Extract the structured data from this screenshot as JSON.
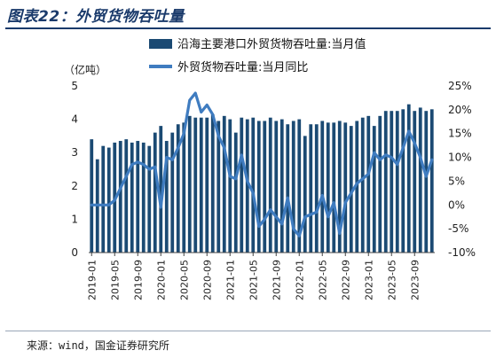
{
  "header": {
    "title": "图表22：外贸货物吞吐量"
  },
  "footer": {
    "source": "来源：wind，国金证券研究所"
  },
  "colors": {
    "bar": "#1b4a73",
    "line": "#3f7cc0",
    "title": "#1a3a6b"
  },
  "chart_data": {
    "type": "bar",
    "left_axis_unit": "（亿吨）",
    "ylim_left": [
      0,
      5
    ],
    "ylim_right": [
      -10,
      25
    ],
    "y_ticks_left": [
      "0",
      "1",
      "2",
      "3",
      "4",
      "5"
    ],
    "y_ticks_right": [
      "-10%",
      "-5%",
      "0%",
      "5%",
      "10%",
      "15%",
      "20%",
      "25%"
    ],
    "x_tick_labels": [
      "2019-01",
      "2019-05",
      "2019-09",
      "2020-01",
      "2020-05",
      "2020-09",
      "2021-01",
      "2021-05",
      "2021-09",
      "2022-01",
      "2022-05",
      "2022-09",
      "2023-01",
      "2023-05",
      "2023-09"
    ],
    "legend": [
      "沿海主要港口外贸货物吞吐量:当月值",
      "外贸货物吞吐量:当月同比"
    ],
    "legend_position": "top",
    "categories": [
      "2019-01",
      "2019-02",
      "2019-03",
      "2019-04",
      "2019-05",
      "2019-06",
      "2019-07",
      "2019-08",
      "2019-09",
      "2019-10",
      "2019-11",
      "2019-12",
      "2020-01",
      "2020-02",
      "2020-03",
      "2020-04",
      "2020-05",
      "2020-06",
      "2020-07",
      "2020-08",
      "2020-09",
      "2020-10",
      "2020-11",
      "2020-12",
      "2021-01",
      "2021-02",
      "2021-03",
      "2021-04",
      "2021-05",
      "2021-06",
      "2021-07",
      "2021-08",
      "2021-09",
      "2021-10",
      "2021-11",
      "2021-12",
      "2022-01",
      "2022-02",
      "2022-03",
      "2022-04",
      "2022-05",
      "2022-06",
      "2022-07",
      "2022-08",
      "2022-09",
      "2022-10",
      "2022-11",
      "2022-12",
      "2023-01",
      "2023-02",
      "2023-03",
      "2023-04",
      "2023-05",
      "2023-06",
      "2023-07",
      "2023-08",
      "2023-09",
      "2023-10",
      "2023-11",
      "2023-12"
    ],
    "series": [
      {
        "name": "沿海主要港口外贸货物吞吐量:当月值",
        "kind": "bar",
        "axis": "left",
        "values": [
          3.4,
          2.8,
          3.2,
          3.15,
          3.3,
          3.35,
          3.4,
          3.3,
          3.35,
          3.3,
          3.2,
          3.6,
          3.8,
          3.35,
          3.6,
          3.85,
          3.9,
          4.1,
          4.05,
          4.05,
          4.05,
          4.15,
          3.95,
          4.1,
          4.0,
          3.6,
          4.05,
          4.0,
          4.05,
          3.95,
          3.95,
          4.05,
          3.95,
          4.0,
          3.85,
          3.95,
          4.0,
          3.5,
          3.85,
          3.85,
          3.95,
          3.9,
          3.9,
          3.95,
          3.9,
          3.8,
          3.95,
          4.05,
          4.1,
          3.8,
          4.1,
          4.25,
          4.25,
          4.25,
          4.3,
          4.45,
          4.25,
          4.35,
          4.25,
          4.3
        ]
      },
      {
        "name": "外贸货物吞吐量:当月同比",
        "kind": "line",
        "axis": "right",
        "values": [
          0.0,
          0.0,
          0.0,
          0.0,
          1.0,
          3.5,
          6.0,
          8.5,
          9.0,
          8.5,
          7.5,
          8.0,
          -0.5,
          10.0,
          9.5,
          12.0,
          15.0,
          22.0,
          23.5,
          19.5,
          21.0,
          19.0,
          14.5,
          12.0,
          6.0,
          5.5,
          10.5,
          5.0,
          2.5,
          -4.5,
          -3.0,
          -1.0,
          -2.5,
          -4.0,
          1.5,
          -5.0,
          -6.5,
          -2.5,
          -2.0,
          -1.5,
          2.0,
          -2.5,
          0.5,
          -6.0,
          0.5,
          2.5,
          4.5,
          5.5,
          6.5,
          11.0,
          9.5,
          10.5,
          10.0,
          8.5,
          12.0,
          15.5,
          13.0,
          10.0,
          6.0,
          9.5
        ]
      }
    ]
  }
}
